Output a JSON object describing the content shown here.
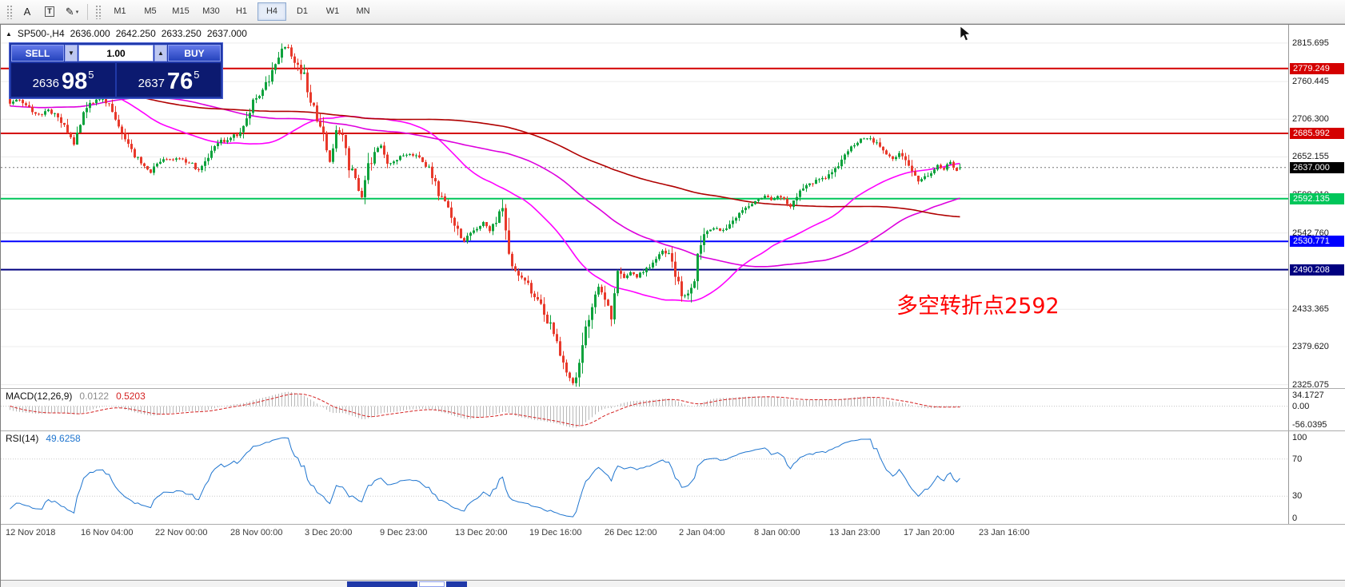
{
  "toolbar": {
    "tools": [
      {
        "id": "text-tool",
        "glyph": "A",
        "caret": ""
      },
      {
        "id": "text-label-tool",
        "glyph": "T",
        "caret": ""
      },
      {
        "id": "drawing-tools",
        "glyph": "✎",
        "caret": "▾"
      }
    ],
    "timeframes": [
      {
        "label": "M1",
        "active": false
      },
      {
        "label": "M5",
        "active": false
      },
      {
        "label": "M15",
        "active": false
      },
      {
        "label": "M30",
        "active": false
      },
      {
        "label": "H1",
        "active": false
      },
      {
        "label": "H4",
        "active": true
      },
      {
        "label": "D1",
        "active": false
      },
      {
        "label": "W1",
        "active": false
      },
      {
        "label": "MN",
        "active": false
      }
    ]
  },
  "chart": {
    "header": {
      "marker": "▲",
      "symbol_period": "SP500-,H4",
      "open": "2636.000",
      "high": "2642.250",
      "low": "2633.250",
      "close": "2637.000"
    },
    "one_click": {
      "sell_label": "SELL",
      "buy_label": "BUY",
      "volume": "1.00",
      "spin_down": "▼",
      "spin_up": "▲",
      "sell_price": {
        "prefix": "2636",
        "big": "98",
        "sup": "5"
      },
      "buy_price": {
        "prefix": "2637",
        "big": "76",
        "sup": "5"
      }
    },
    "annotation": {
      "text": "多空转折点2592",
      "color": "#FF0000"
    }
  },
  "macd": {
    "label": "MACD(12,26,9)",
    "value_main": "0.0122",
    "value_signal": "0.5203",
    "scale": [
      "34.1727",
      "0.00",
      "-56.0395"
    ]
  },
  "rsi": {
    "label": "RSI(14)",
    "value": "49.6258",
    "scale": [
      "100",
      "70",
      "30",
      "0"
    ],
    "levels": [
      70,
      30
    ]
  },
  "chart_data": {
    "type": "candlestick",
    "symbol": "SP500-",
    "period": "H4",
    "ohlc": {
      "open": 2636.0,
      "high": 2642.25,
      "low": 2633.25,
      "close": 2637.0
    },
    "price_range": {
      "max": 2842,
      "min": 2320
    },
    "price_axis_ticks": [
      2815.695,
      2760.445,
      2706.3,
      2652.155,
      2598.01,
      2542.76,
      2489.72,
      2433.365,
      2379.62,
      2325.075
    ],
    "price_levels": [
      {
        "price": 2779.249,
        "label": "2779.249",
        "color": "#D40000"
      },
      {
        "price": 2685.992,
        "label": "2685.992",
        "color": "#D40000"
      },
      {
        "price": 2592.135,
        "label": "2592.135",
        "color": "#00C65A"
      },
      {
        "price": 2530.771,
        "label": "2530.771",
        "color": "#0000FF"
      },
      {
        "price": 2490.208,
        "label": "2490.208",
        "color": "#000080"
      }
    ],
    "current_price": {
      "price": 2637.0,
      "label": "2637.000",
      "color": "#000000"
    },
    "time_labels": [
      "12 Nov 2018",
      "16 Nov 04:00",
      "22 Nov 00:00",
      "28 Nov 00:00",
      "3 Dec 20:00",
      "9 Dec 23:00",
      "13 Dec 20:00",
      "19 Dec 16:00",
      "26 Dec 12:00",
      "2 Jan 04:00",
      "8 Jan 00:00",
      "13 Jan 23:00",
      "17 Jan 20:00",
      "23 Jan 16:00"
    ],
    "candle_count": 298,
    "history_start": -210,
    "price_path_anchors": [
      [
        -210,
        2905
      ],
      [
        -198,
        2930
      ],
      [
        -186,
        2938
      ],
      [
        -174,
        2915
      ],
      [
        -162,
        2872
      ],
      [
        -150,
        2820
      ],
      [
        -144,
        2768
      ],
      [
        -138,
        2716
      ],
      [
        -132,
        2712
      ],
      [
        -126,
        2762
      ],
      [
        -120,
        2788
      ],
      [
        -114,
        2806
      ],
      [
        -108,
        2816
      ],
      [
        -102,
        2780
      ],
      [
        -96,
        2760
      ],
      [
        -90,
        2720
      ],
      [
        -84,
        2690
      ],
      [
        -78,
        2660
      ],
      [
        -72,
        2645
      ],
      [
        -66,
        2628
      ],
      [
        -60,
        2604
      ],
      [
        -54,
        2660
      ],
      [
        -48,
        2705
      ],
      [
        -42,
        2738
      ],
      [
        -36,
        2775
      ],
      [
        -30,
        2798
      ],
      [
        -24,
        2806
      ],
      [
        -18,
        2814
      ],
      [
        -12,
        2802
      ],
      [
        -6,
        2790
      ],
      [
        -3,
        2762
      ],
      [
        0,
        2728
      ],
      [
        3,
        2736
      ],
      [
        6,
        2722
      ],
      [
        9,
        2712
      ],
      [
        12,
        2720
      ],
      [
        15,
        2708
      ],
      [
        18,
        2690
      ],
      [
        20,
        2672
      ],
      [
        22,
        2700
      ],
      [
        24,
        2725
      ],
      [
        27,
        2733
      ],
      [
        29,
        2736
      ],
      [
        32,
        2718
      ],
      [
        35,
        2692
      ],
      [
        38,
        2662
      ],
      [
        41,
        2641
      ],
      [
        44,
        2630
      ],
      [
        47,
        2648
      ],
      [
        50,
        2650
      ],
      [
        53,
        2648
      ],
      [
        56,
        2645
      ],
      [
        59,
        2632
      ],
      [
        62,
        2650
      ],
      [
        65,
        2672
      ],
      [
        68,
        2678
      ],
      [
        71,
        2684
      ],
      [
        74,
        2706
      ],
      [
        77,
        2740
      ],
      [
        79,
        2748
      ],
      [
        81,
        2762
      ],
      [
        83,
        2788
      ],
      [
        85,
        2806
      ],
      [
        87,
        2812
      ],
      [
        88,
        2800
      ],
      [
        90,
        2780
      ],
      [
        92,
        2768
      ],
      [
        94,
        2736
      ],
      [
        96,
        2700
      ],
      [
        98,
        2686
      ],
      [
        100,
        2645
      ],
      [
        102,
        2690
      ],
      [
        104,
        2680
      ],
      [
        106,
        2636
      ],
      [
        108,
        2620
      ],
      [
        110,
        2592
      ],
      [
        112,
        2636
      ],
      [
        114,
        2656
      ],
      [
        116,
        2670
      ],
      [
        118,
        2640
      ],
      [
        120,
        2646
      ],
      [
        122,
        2652
      ],
      [
        125,
        2656
      ],
      [
        128,
        2650
      ],
      [
        131,
        2636
      ],
      [
        134,
        2600
      ],
      [
        137,
        2578
      ],
      [
        140,
        2546
      ],
      [
        142,
        2532
      ],
      [
        145,
        2548
      ],
      [
        148,
        2558
      ],
      [
        150,
        2546
      ],
      [
        152,
        2562
      ],
      [
        154,
        2584
      ],
      [
        156,
        2508
      ],
      [
        158,
        2490
      ],
      [
        160,
        2478
      ],
      [
        162,
        2467
      ],
      [
        164,
        2452
      ],
      [
        166,
        2441
      ],
      [
        168,
        2418
      ],
      [
        170,
        2400
      ],
      [
        172,
        2368
      ],
      [
        174,
        2346
      ],
      [
        176,
        2326
      ],
      [
        178,
        2356
      ],
      [
        180,
        2400
      ],
      [
        182,
        2440
      ],
      [
        184,
        2466
      ],
      [
        186,
        2452
      ],
      [
        188,
        2424
      ],
      [
        190,
        2488
      ],
      [
        192,
        2478
      ],
      [
        194,
        2486
      ],
      [
        196,
        2480
      ],
      [
        198,
        2487
      ],
      [
        200,
        2497
      ],
      [
        202,
        2508
      ],
      [
        204,
        2516
      ],
      [
        206,
        2510
      ],
      [
        208,
        2488
      ],
      [
        210,
        2448
      ],
      [
        212,
        2458
      ],
      [
        214,
        2482
      ],
      [
        216,
        2532
      ],
      [
        218,
        2542
      ],
      [
        220,
        2551
      ],
      [
        222,
        2546
      ],
      [
        224,
        2552
      ],
      [
        226,
        2562
      ],
      [
        228,
        2574
      ],
      [
        230,
        2580
      ],
      [
        232,
        2586
      ],
      [
        234,
        2591
      ],
      [
        236,
        2597
      ],
      [
        238,
        2589
      ],
      [
        240,
        2596
      ],
      [
        242,
        2589
      ],
      [
        244,
        2582
      ],
      [
        246,
        2592
      ],
      [
        248,
        2610
      ],
      [
        250,
        2612
      ],
      [
        252,
        2617
      ],
      [
        254,
        2621
      ],
      [
        256,
        2627
      ],
      [
        258,
        2637
      ],
      [
        260,
        2648
      ],
      [
        262,
        2660
      ],
      [
        264,
        2670
      ],
      [
        266,
        2676
      ],
      [
        268,
        2680
      ],
      [
        270,
        2674
      ],
      [
        272,
        2668
      ],
      [
        274,
        2656
      ],
      [
        276,
        2648
      ],
      [
        278,
        2658
      ],
      [
        280,
        2644
      ],
      [
        282,
        2630
      ],
      [
        284,
        2616
      ],
      [
        286,
        2622
      ],
      [
        288,
        2632
      ],
      [
        290,
        2640
      ],
      [
        292,
        2635
      ],
      [
        294,
        2645
      ],
      [
        296,
        2631
      ],
      [
        297,
        2637
      ]
    ],
    "moving_averages": [
      {
        "period": 50,
        "color": "#FF00FF"
      },
      {
        "period": 100,
        "color": "#DD00DD"
      },
      {
        "period": 200,
        "color": "#B00000"
      }
    ],
    "colors": {
      "up": "#0DA23C",
      "down": "#E8392B",
      "grid": "#ECECEC",
      "macd_hist": "#B9B9B9",
      "macd_signal": "#D42222",
      "rsi": "#1F75CF"
    },
    "indicators": [
      {
        "name": "MACD",
        "params": [
          12,
          26,
          9
        ]
      },
      {
        "name": "RSI",
        "params": [
          14
        ]
      }
    ]
  }
}
